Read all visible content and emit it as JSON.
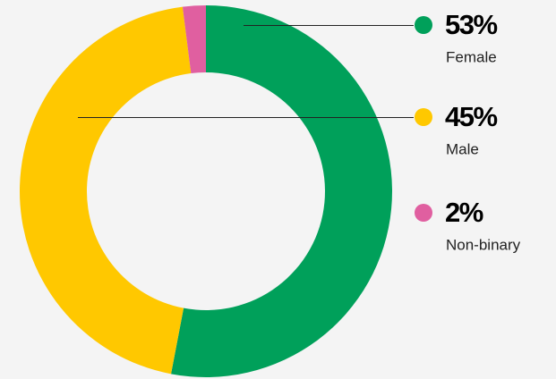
{
  "chart_data": {
    "type": "pie",
    "categories": [
      "Female",
      "Male",
      "Non-binary"
    ],
    "values": [
      53,
      45,
      2
    ],
    "value_labels": [
      "53%",
      "45%",
      "2%"
    ],
    "colors": [
      "#00a05a",
      "#ffc800",
      "#e05fa0"
    ]
  }
}
